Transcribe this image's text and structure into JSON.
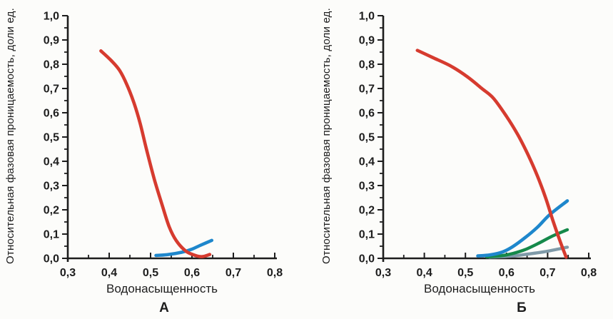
{
  "figure": {
    "background": "#fcfcfa",
    "axis_color": "#1d1d1d",
    "text_color": "#1d1d1d"
  },
  "chart_data": [
    {
      "id": "A",
      "type": "line",
      "label": "А",
      "xlabel": "Водонасыщенность",
      "ylabel": "Относительная фазовая проницаемость, доли ед.",
      "xlim": [
        0.3,
        0.8
      ],
      "ylim": [
        0.0,
        1.0
      ],
      "grid": false,
      "legend": "none",
      "x_major_ticks": [
        0.3,
        0.4,
        0.5,
        0.6,
        0.7,
        0.8
      ],
      "x_tick_labels": [
        "0,3",
        "0,4",
        "0,5",
        "0,6",
        "0,7",
        "0,8"
      ],
      "x_minor_step": 0.05,
      "y_major_ticks": [
        0.0,
        0.1,
        0.2,
        0.3,
        0.4,
        0.5,
        0.6,
        0.7,
        0.8,
        0.9,
        1.0
      ],
      "y_tick_labels": [
        "0,0",
        "0,1",
        "0,2",
        "0,3",
        "0,4",
        "0,5",
        "0,6",
        "0,7",
        "0,8",
        "0,9",
        "1,0"
      ],
      "y_minor_step": 0.05,
      "series": [
        {
          "name": "blue-curve",
          "color": "#1e87cc",
          "width": 4.5,
          "points": [
            [
              0.513,
              0.012
            ],
            [
              0.54,
              0.015
            ],
            [
              0.575,
              0.025
            ],
            [
              0.6,
              0.038
            ],
            [
              0.622,
              0.055
            ],
            [
              0.648,
              0.074
            ]
          ]
        },
        {
          "name": "red-curve",
          "color": "#d63b2f",
          "width": 4.6,
          "points": [
            [
              0.38,
              0.855
            ],
            [
              0.405,
              0.815
            ],
            [
              0.425,
              0.775
            ],
            [
              0.443,
              0.715
            ],
            [
              0.46,
              0.64
            ],
            [
              0.475,
              0.555
            ],
            [
              0.49,
              0.45
            ],
            [
              0.51,
              0.32
            ],
            [
              0.528,
              0.22
            ],
            [
              0.545,
              0.13
            ],
            [
              0.562,
              0.073
            ],
            [
              0.585,
              0.03
            ],
            [
              0.608,
              0.012
            ],
            [
              0.625,
              0.007
            ],
            [
              0.643,
              0.016
            ]
          ]
        }
      ]
    },
    {
      "id": "B",
      "type": "line",
      "label": "Б",
      "xlabel": "Водонасыщенность",
      "ylabel": "Относительная фазовая проницаемость, доли ед.",
      "xlim": [
        0.3,
        0.8
      ],
      "ylim": [
        0.0,
        1.0
      ],
      "grid": false,
      "legend": "none",
      "x_major_ticks": [
        0.3,
        0.4,
        0.5,
        0.6,
        0.7,
        0.8
      ],
      "x_tick_labels": [
        "0,3",
        "0,4",
        "0,5",
        "0,6",
        "0,7",
        "0,8"
      ],
      "x_minor_step": 0.05,
      "y_major_ticks": [
        0.0,
        0.1,
        0.2,
        0.3,
        0.4,
        0.5,
        0.6,
        0.7,
        0.8,
        0.9,
        1.0
      ],
      "y_tick_labels": [
        "0,0",
        "0,1",
        "0,2",
        "0,3",
        "0,4",
        "0,5",
        "0,6",
        "0,7",
        "0,8",
        "0,9",
        "1,0"
      ],
      "y_minor_step": 0.05,
      "series": [
        {
          "name": "gray-curve",
          "color": "#7f9aa8",
          "width": 4.4,
          "points": [
            [
              0.558,
              0.005
            ],
            [
              0.61,
              0.009
            ],
            [
              0.65,
              0.017
            ],
            [
              0.695,
              0.028
            ],
            [
              0.748,
              0.046
            ]
          ]
        },
        {
          "name": "green-curve",
          "color": "#15894a",
          "width": 4.4,
          "points": [
            [
              0.552,
              0.006
            ],
            [
              0.585,
              0.01
            ],
            [
              0.615,
              0.02
            ],
            [
              0.645,
              0.036
            ],
            [
              0.678,
              0.062
            ],
            [
              0.712,
              0.092
            ],
            [
              0.748,
              0.118
            ]
          ]
        },
        {
          "name": "blue-curve",
          "color": "#1e87cc",
          "width": 4.6,
          "points": [
            [
              0.53,
              0.01
            ],
            [
              0.56,
              0.014
            ],
            [
              0.59,
              0.026
            ],
            [
              0.615,
              0.048
            ],
            [
              0.645,
              0.085
            ],
            [
              0.675,
              0.128
            ],
            [
              0.705,
              0.18
            ],
            [
              0.748,
              0.237
            ]
          ]
        },
        {
          "name": "red-curve",
          "color": "#d63b2f",
          "width": 4.6,
          "points": [
            [
              0.383,
              0.857
            ],
            [
              0.42,
              0.828
            ],
            [
              0.465,
              0.792
            ],
            [
              0.505,
              0.748
            ],
            [
              0.54,
              0.7
            ],
            [
              0.568,
              0.66
            ],
            [
              0.6,
              0.585
            ],
            [
              0.628,
              0.508
            ],
            [
              0.652,
              0.428
            ],
            [
              0.675,
              0.34
            ],
            [
              0.695,
              0.25
            ],
            [
              0.712,
              0.16
            ],
            [
              0.73,
              0.072
            ],
            [
              0.745,
              0.005
            ]
          ]
        }
      ]
    }
  ]
}
